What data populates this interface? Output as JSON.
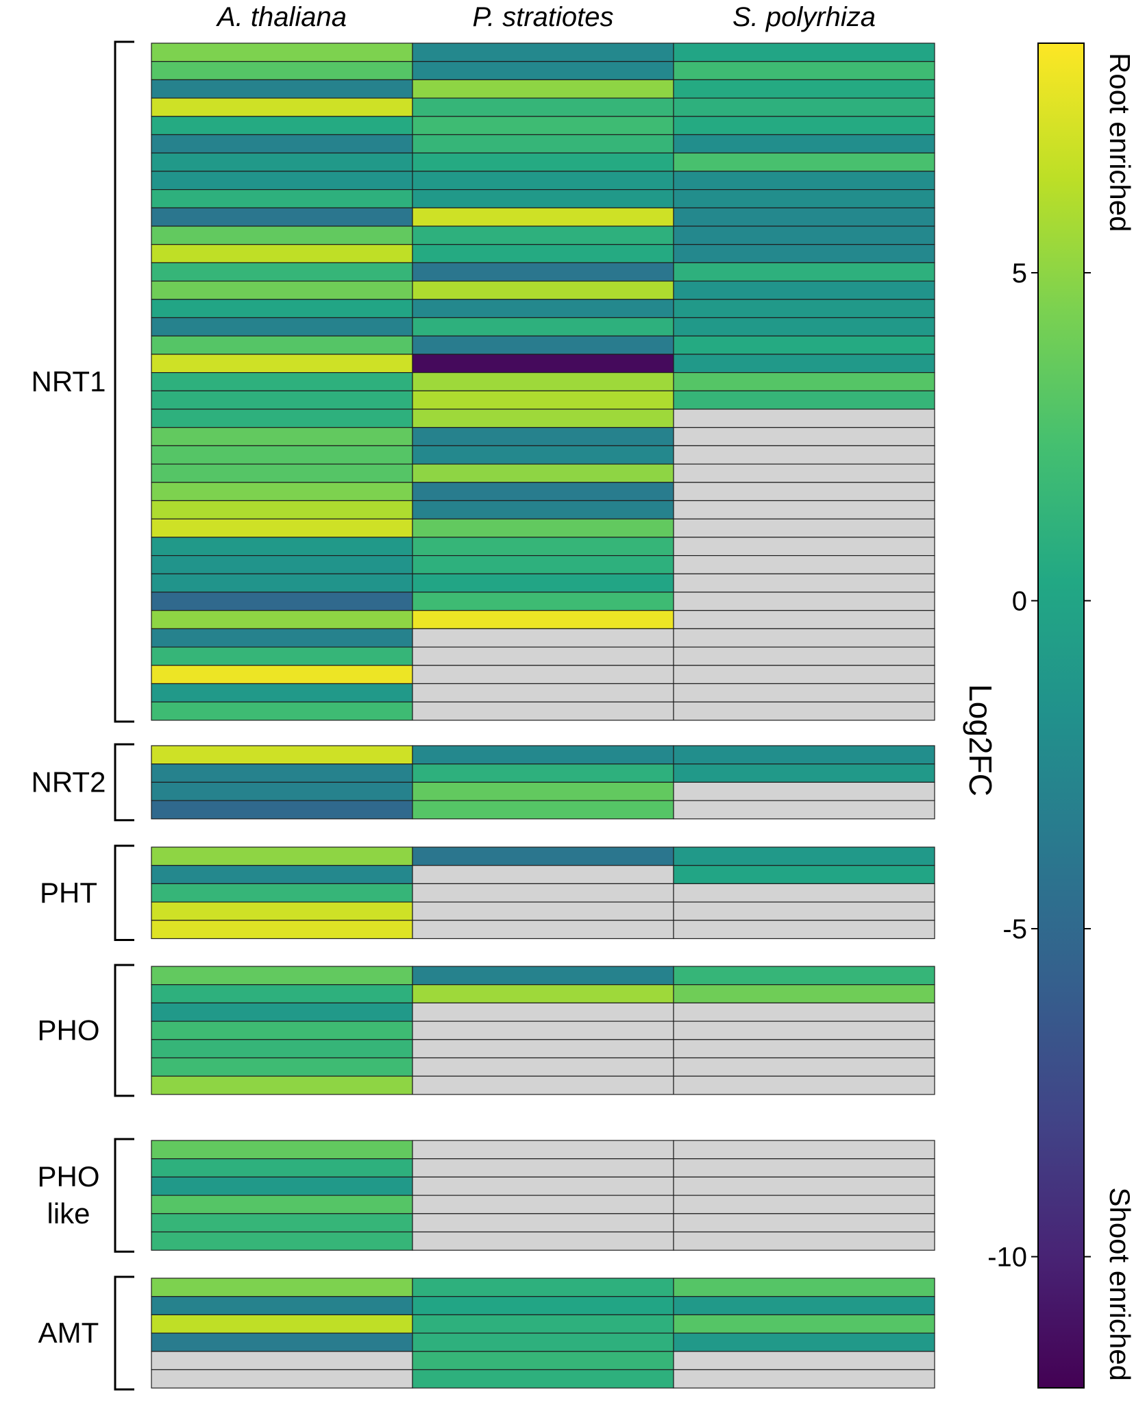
{
  "chart_data": {
    "type": "heatmap",
    "columns": [
      "A. thaliana",
      "P. stratiotes",
      "S. polyrhiza"
    ],
    "value_label": "Log2FC",
    "colorbar": {
      "label": "Log2FC",
      "range": [
        -12,
        8.5
      ],
      "ticks": [
        5,
        0,
        -5,
        -10
      ],
      "tick_labels": [
        "5",
        "0",
        "-5",
        "-10"
      ],
      "high_label": "Root enriched",
      "low_label": "Shoot enriched",
      "colormap": "viridis"
    },
    "missing_color": "#d3d3d3",
    "groups": [
      {
        "name": "NRT1",
        "label_lines": [
          "NRT1"
        ],
        "rows": [
          [
            4.5,
            -2.5,
            0
          ],
          [
            3,
            -2.5,
            2
          ],
          [
            -3,
            5,
            0.5
          ],
          [
            7,
            1.5,
            1
          ],
          [
            0.5,
            2,
            0.5
          ],
          [
            -3,
            1.5,
            -2
          ],
          [
            -1,
            0.5,
            2.5
          ],
          [
            -1.5,
            -1,
            -2
          ],
          [
            1,
            -1,
            -2
          ],
          [
            -4,
            7,
            -2.5
          ],
          [
            3.5,
            1,
            -2.5
          ],
          [
            6.5,
            0.5,
            -2.5
          ],
          [
            1.5,
            -4,
            1
          ],
          [
            4,
            6,
            -1.5
          ],
          [
            0,
            -2.5,
            -1
          ],
          [
            -3,
            1,
            -1
          ],
          [
            3,
            -3.5,
            0.5
          ],
          [
            7,
            -11.5,
            -1
          ],
          [
            1,
            5.5,
            3
          ],
          [
            1,
            6,
            1.5
          ],
          [
            1,
            5.5,
            null
          ],
          [
            3.5,
            -3,
            null
          ],
          [
            3,
            -2.5,
            null
          ],
          [
            3,
            5,
            null
          ],
          [
            4.5,
            -3.5,
            null
          ],
          [
            6,
            -3,
            null
          ],
          [
            7,
            3.5,
            null
          ],
          [
            -1,
            1.5,
            null
          ],
          [
            -1.5,
            1,
            null
          ],
          [
            -1.5,
            0,
            null
          ],
          [
            -5,
            2,
            null
          ],
          [
            5,
            8,
            null
          ],
          [
            -3,
            null,
            null
          ],
          [
            1.5,
            null,
            null
          ],
          [
            8,
            null,
            null
          ],
          [
            -1,
            null,
            null
          ],
          [
            2,
            null,
            null
          ]
        ]
      },
      {
        "name": "NRT2",
        "label_lines": [
          "NRT2"
        ],
        "rows": [
          [
            7,
            -2.5,
            -2
          ],
          [
            -3,
            1,
            -1
          ],
          [
            -3,
            3.5,
            null
          ],
          [
            -5,
            3,
            null
          ]
        ]
      },
      {
        "name": "PHT",
        "label_lines": [
          "PHT"
        ],
        "rows": [
          [
            5,
            -4,
            -1
          ],
          [
            -2.5,
            null,
            0
          ],
          [
            1.5,
            null,
            null
          ],
          [
            7,
            null,
            null
          ],
          [
            7.5,
            null,
            null
          ]
        ]
      },
      {
        "name": "PHO",
        "label_lines": [
          "PHO"
        ],
        "rows": [
          [
            3.5,
            -3,
            1.5
          ],
          [
            1,
            5.5,
            4
          ],
          [
            -1,
            null,
            null
          ],
          [
            2,
            null,
            null
          ],
          [
            1.5,
            null,
            null
          ],
          [
            2,
            null,
            null
          ],
          [
            5,
            null,
            null
          ]
        ]
      },
      {
        "name": "PHO like",
        "label_lines": [
          "PHO",
          "like"
        ],
        "rows": [
          [
            3.5,
            null,
            null
          ],
          [
            1,
            null,
            null
          ],
          [
            -1,
            null,
            null
          ],
          [
            3,
            null,
            null
          ],
          [
            1.5,
            null,
            null
          ],
          [
            1.5,
            null,
            null
          ]
        ]
      },
      {
        "name": "AMT",
        "label_lines": [
          "AMT"
        ],
        "rows": [
          [
            4.5,
            1,
            3
          ],
          [
            -3,
            0,
            -1
          ],
          [
            6.5,
            1,
            3
          ],
          [
            -3.5,
            1,
            -1
          ],
          [
            null,
            1.5,
            null
          ],
          [
            null,
            1,
            null
          ]
        ]
      }
    ]
  }
}
